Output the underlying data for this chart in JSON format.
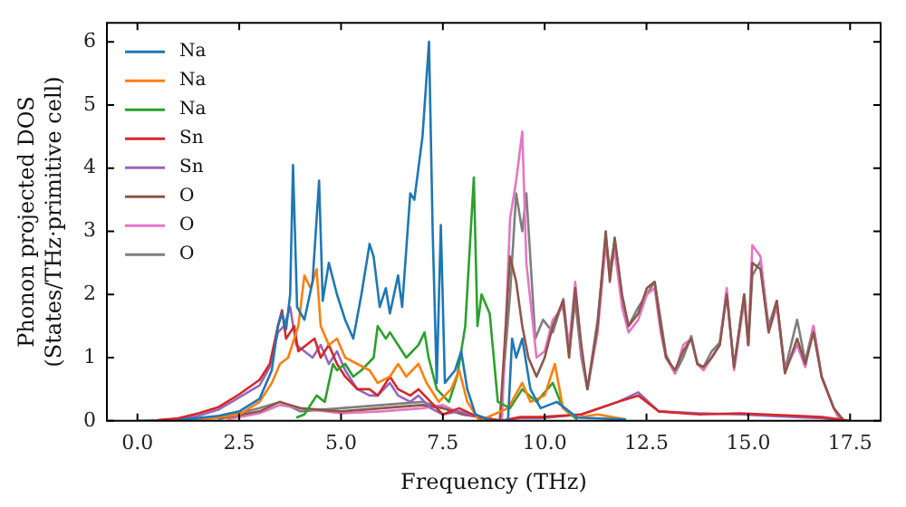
{
  "chart_data": {
    "type": "line",
    "xlabel": "Frequency (THz)",
    "ylabel": "Phonon projected DOS\n(States/THz·primitive cell)",
    "xlim": [
      -0.75,
      18.25
    ],
    "ylim": [
      0,
      6.3
    ],
    "xticks": [
      {
        "value": 0,
        "label": "0.0"
      },
      {
        "value": 2.5,
        "label": "2.5"
      },
      {
        "value": 5,
        "label": "5.0"
      },
      {
        "value": 7.5,
        "label": "7.5"
      },
      {
        "value": 10,
        "label": "10.0"
      },
      {
        "value": 12.5,
        "label": "12.5"
      },
      {
        "value": 15,
        "label": "15.0"
      },
      {
        "value": 17.5,
        "label": "17.5"
      }
    ],
    "yticks": [
      0,
      1,
      2,
      3,
      4,
      5,
      6
    ],
    "legend": "top left",
    "grid": false,
    "marker": "none",
    "line_style": "solid",
    "series": [
      {
        "name": "Na",
        "color": "#1f77b4",
        "x": [
          1,
          2,
          2.5,
          3,
          3.3,
          3.45,
          3.55,
          3.65,
          3.75,
          3.82,
          3.92,
          4.1,
          4.3,
          4.46,
          4.55,
          4.7,
          4.9,
          5.1,
          5.3,
          5.5,
          5.7,
          5.8,
          5.95,
          6.1,
          6.2,
          6.4,
          6.5,
          6.7,
          6.8,
          7,
          7.16,
          7.25,
          7.35,
          7.45,
          7.55,
          7.8,
          7.95,
          8.1,
          8.3,
          8.7,
          9.1,
          9.2,
          9.3,
          9.45,
          9.65,
          9.9,
          10.3,
          10.8,
          12
        ],
        "values": [
          0.01,
          0.08,
          0.15,
          0.35,
          0.8,
          1.5,
          1.7,
          1.45,
          2,
          4.05,
          1.8,
          1.6,
          2.2,
          3.8,
          1.9,
          2.5,
          2,
          1.6,
          1.3,
          2,
          2.8,
          2.6,
          1.8,
          2.1,
          1.7,
          2.3,
          1.8,
          3.6,
          3.5,
          4.5,
          6,
          3,
          0.6,
          3.1,
          0.6,
          0.8,
          1.1,
          0.5,
          0.1,
          0,
          0,
          1.3,
          1,
          1.3,
          0.5,
          0.2,
          0.3,
          0.05,
          0.02
        ]
      },
      {
        "name": "Na",
        "color": "#ff7f0e",
        "x": [
          1.5,
          2.5,
          3,
          3.3,
          3.5,
          3.7,
          3.95,
          4.1,
          4.25,
          4.4,
          4.5,
          4.7,
          4.9,
          5.1,
          5.4,
          5.7,
          5.9,
          6.2,
          6.4,
          6.6,
          6.9,
          7.1,
          7.4,
          7.7,
          7.9,
          8.1,
          8.4,
          9.1,
          9.45,
          9.65,
          10,
          10.25,
          10.45,
          10.8,
          11.3,
          12
        ],
        "values": [
          0.01,
          0.1,
          0.3,
          0.6,
          0.9,
          1,
          1.5,
          2.3,
          2.1,
          2.4,
          1.5,
          1.2,
          1.3,
          1,
          0.9,
          0.8,
          0.6,
          0.7,
          0.9,
          0.7,
          0.9,
          0.6,
          0.3,
          0.5,
          0.8,
          0.3,
          0,
          0.2,
          0.6,
          0.3,
          0.4,
          0.9,
          0.2,
          0.05,
          0.1,
          0.02
        ]
      },
      {
        "name": "Na",
        "color": "#2ca02c",
        "x": [
          3.9,
          4.1,
          4.4,
          4.6,
          4.8,
          4.9,
          5.1,
          5.3,
          5.5,
          5.8,
          5.9,
          6.1,
          6.2,
          6.4,
          6.6,
          6.9,
          7.05,
          7.15,
          7.35,
          7.65,
          7.85,
          8.05,
          8.26,
          8.35,
          8.45,
          8.65,
          8.85,
          9.15,
          9.45,
          9.8,
          10.2,
          10.45,
          10.8
        ],
        "values": [
          0.05,
          0.1,
          0.4,
          0.3,
          0.9,
          0.8,
          0.9,
          0.7,
          0.8,
          1,
          1.5,
          1.3,
          1.4,
          1.2,
          1,
          1.2,
          1.4,
          1,
          0.5,
          0.3,
          0.7,
          1.5,
          3.85,
          1.5,
          2,
          1.7,
          0.3,
          0.2,
          0.5,
          0.3,
          0.6,
          0.2,
          0.02
        ]
      },
      {
        "name": "Sn",
        "color": "#d62728",
        "x": [
          0.5,
          1,
          1.5,
          2,
          2.5,
          3,
          3.25,
          3.45,
          3.55,
          3.65,
          3.85,
          3.95,
          4.15,
          4.35,
          4.5,
          4.7,
          4.9,
          5.1,
          5.4,
          5.7,
          5.9,
          6.2,
          6.4,
          6.7,
          6.9,
          7.2,
          7.5,
          7.9,
          8.4,
          8.95,
          9.4,
          9.9,
          10.9,
          11.8,
          12.3,
          12.8,
          13.8,
          14.8,
          15.8,
          16.8,
          17.5
        ],
        "values": [
          0.01,
          0.04,
          0.12,
          0.22,
          0.42,
          0.65,
          0.9,
          1.5,
          1.75,
          1.3,
          1.5,
          1.1,
          1.2,
          1.3,
          1,
          1.2,
          0.9,
          0.7,
          0.5,
          0.5,
          0.4,
          0.7,
          0.5,
          0.4,
          0.5,
          0.3,
          0.1,
          0.2,
          0.05,
          0,
          0.06,
          0.06,
          0.1,
          0.3,
          0.4,
          0.15,
          0.1,
          0.12,
          0.09,
          0.06,
          0
        ]
      },
      {
        "name": "Sn",
        "color": "#9467bd",
        "x": [
          0.6,
          1,
          1.5,
          2,
          2.5,
          3,
          3.25,
          3.45,
          3.6,
          3.75,
          3.9,
          4.1,
          4.3,
          4.5,
          4.7,
          4.9,
          5.1,
          5.4,
          5.7,
          5.9,
          6.2,
          6.4,
          6.7,
          6.9,
          7.2,
          7.5,
          7.9,
          8.4,
          8.85,
          9.4,
          9.9,
          10.9,
          11.8,
          12.3,
          12.8,
          13.8,
          14.8,
          15.8,
          16.8,
          17.45
        ],
        "values": [
          0.01,
          0.02,
          0.08,
          0.18,
          0.37,
          0.56,
          0.85,
          1.4,
          1.5,
          1.8,
          1.2,
          1.1,
          1,
          1.2,
          0.9,
          1.1,
          0.8,
          0.5,
          0.4,
          0.4,
          0.6,
          0.4,
          0.3,
          0.4,
          0.2,
          0.1,
          0.15,
          0.05,
          0,
          0.04,
          0.04,
          0.1,
          0.3,
          0.45,
          0.15,
          0.12,
          0.1,
          0.07,
          0.04,
          0
        ]
      },
      {
        "name": "O",
        "color": "#8c564b",
        "x": [
          2,
          3,
          3.5,
          4,
          5,
          6,
          7,
          7.5,
          8,
          8.5,
          8.9,
          9.15,
          9.3,
          9.45,
          9.6,
          9.8,
          10,
          10.2,
          10.45,
          10.6,
          10.75,
          10.9,
          11.05,
          11.3,
          11.5,
          11.6,
          11.72,
          11.9,
          12.06,
          12.3,
          12.51,
          12.7,
          12.85,
          12.98,
          13.2,
          13.4,
          13.6,
          13.75,
          13.9,
          14.1,
          14.3,
          14.47,
          14.65,
          14.9,
          15,
          15.1,
          15.3,
          15.5,
          15.7,
          15.9,
          16.2,
          16.4,
          16.6,
          16.8,
          17.1,
          17.35
        ],
        "values": [
          0.03,
          0.15,
          0.3,
          0.2,
          0.15,
          0.2,
          0.25,
          0.2,
          0.1,
          0.05,
          0,
          2.6,
          2.2,
          1.5,
          1,
          0.7,
          1,
          1.5,
          1.9,
          1,
          2.1,
          1.2,
          0.5,
          1.5,
          3,
          2.2,
          2.9,
          2,
          1.5,
          1.7,
          2.1,
          2.2,
          1.5,
          1,
          0.8,
          1.1,
          1.3,
          0.9,
          0.85,
          1,
          1.2,
          2,
          0.85,
          2,
          1.2,
          2.5,
          2.4,
          1.4,
          1.9,
          0.75,
          1.3,
          0.9,
          1.4,
          0.7,
          0.2,
          0
        ]
      },
      {
        "name": "O",
        "color": "#e377c2",
        "x": [
          2.2,
          3,
          3.5,
          4,
          5,
          6,
          7,
          7.5,
          8,
          8.5,
          8.95,
          9.15,
          9.3,
          9.45,
          9.55,
          9.8,
          10,
          10.2,
          10.45,
          10.6,
          10.75,
          10.9,
          11.05,
          11.3,
          11.5,
          11.6,
          11.72,
          11.9,
          12.06,
          12.3,
          12.51,
          12.7,
          12.85,
          12.98,
          13.2,
          13.4,
          13.6,
          13.75,
          13.9,
          14.1,
          14.3,
          14.47,
          14.65,
          14.9,
          15,
          15.1,
          15.3,
          15.5,
          15.7,
          15.9,
          16.2,
          16.4,
          16.6,
          16.8,
          17.1,
          17.25
        ],
        "values": [
          0.02,
          0.12,
          0.25,
          0.2,
          0.12,
          0.15,
          0.2,
          0.25,
          0.1,
          0.05,
          0,
          3.2,
          3.8,
          4.58,
          2.5,
          1,
          1.1,
          1.6,
          1.8,
          1.2,
          2.2,
          1.1,
          0.5,
          1.4,
          2.8,
          2.3,
          2.7,
          1.8,
          1.4,
          1.6,
          2,
          2.1,
          1.4,
          1,
          0.75,
          1.2,
          1.3,
          0.9,
          0.8,
          1,
          1.2,
          2.1,
          0.8,
          1.9,
          1.2,
          2.78,
          2.6,
          1.4,
          1.8,
          0.8,
          1.2,
          0.85,
          1.5,
          0.7,
          0.2,
          0
        ]
      },
      {
        "name": "O",
        "color": "#7f7f7f",
        "x": [
          0,
          2,
          3,
          3.5,
          4,
          5,
          6,
          7,
          7.5,
          8,
          8.5,
          8.9,
          9.15,
          9.3,
          9.45,
          9.55,
          9.77,
          9.96,
          10.2,
          10.46,
          10.6,
          10.75,
          10.9,
          11.05,
          11.3,
          11.5,
          11.6,
          11.72,
          11.9,
          12.06,
          12.3,
          12.51,
          12.7,
          12.85,
          12.98,
          13.2,
          13.4,
          13.6,
          13.75,
          13.9,
          14.1,
          14.3,
          14.47,
          14.65,
          14.9,
          15,
          15.1,
          15.3,
          15.5,
          15.7,
          15.9,
          16.2,
          16.4,
          16.6,
          16.8,
          17.1,
          17.3
        ],
        "values": [
          0,
          0.04,
          0.2,
          0.3,
          0.15,
          0.2,
          0.25,
          0.3,
          0.2,
          0.1,
          0.05,
          0,
          2,
          3.6,
          3,
          3.6,
          1.3,
          1.6,
          1.4,
          1.93,
          1.1,
          1.9,
          1,
          0.5,
          1.6,
          2.9,
          2.4,
          2.85,
          1.9,
          1.5,
          1.8,
          2,
          2.2,
          1.6,
          1.05,
          0.75,
          1,
          1.34,
          0.9,
          0.85,
          1.1,
          1.24,
          2.04,
          0.85,
          2,
          1.2,
          2.3,
          2.53,
          1.5,
          1.9,
          0.8,
          1.6,
          0.94,
          1.5,
          0.7,
          0.2,
          0
        ]
      }
    ]
  }
}
